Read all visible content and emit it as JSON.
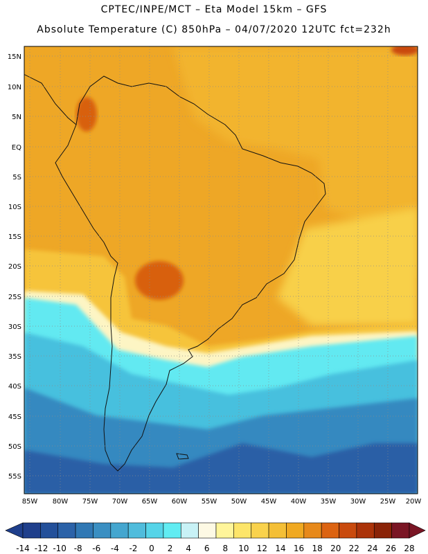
{
  "header": {
    "line1": "CPTEC/INPE/MCT –  Eta Model 15km – GFS",
    "line2": "Absolute Temperature (C) 850hPa – 04/07/2020 12UTC fct=232h"
  },
  "map": {
    "lat_ticks": [
      "15N",
      "10N",
      "5N",
      "EQ",
      "5S",
      "10S",
      "15S",
      "20S",
      "25S",
      "30S",
      "35S",
      "40S",
      "45S",
      "50S",
      "55S"
    ],
    "lon_ticks": [
      "85W",
      "80W",
      "75W",
      "70W",
      "65W",
      "60W",
      "55W",
      "50W",
      "45W",
      "40W",
      "35W",
      "30W",
      "25W",
      "20W"
    ]
  },
  "colorbar": {
    "labels": [
      "-14",
      "-12",
      "-10",
      "-8",
      "-6",
      "-4",
      "-2",
      "0",
      "2",
      "4",
      "6",
      "8",
      "10",
      "12",
      "14",
      "16",
      "18",
      "20",
      "22",
      "24",
      "26",
      "28"
    ],
    "colors": [
      "#1f3f8c",
      "#23509a",
      "#2b62a8",
      "#3078b4",
      "#3a8fc2",
      "#44a6cf",
      "#4fbcdc",
      "#55d4e8",
      "#61ecf2",
      "#c8f2f6",
      "#fdf9e4",
      "#fff59a",
      "#fde569",
      "#f9d24c",
      "#f4bf36",
      "#f0a921",
      "#e7891a",
      "#dc6311",
      "#c94a0d",
      "#ab3309",
      "#8a2307",
      "#7a1524"
    ]
  }
}
